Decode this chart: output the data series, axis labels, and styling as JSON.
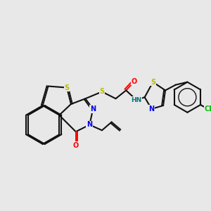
{
  "bg_color": "#e8e8e8",
  "atom_colors": {
    "S": "#bbbb00",
    "N": "#0000ee",
    "O": "#ff0000",
    "Cl": "#00bb00",
    "NH": "#007777",
    "C": "#111111"
  },
  "bond_color": "#111111"
}
